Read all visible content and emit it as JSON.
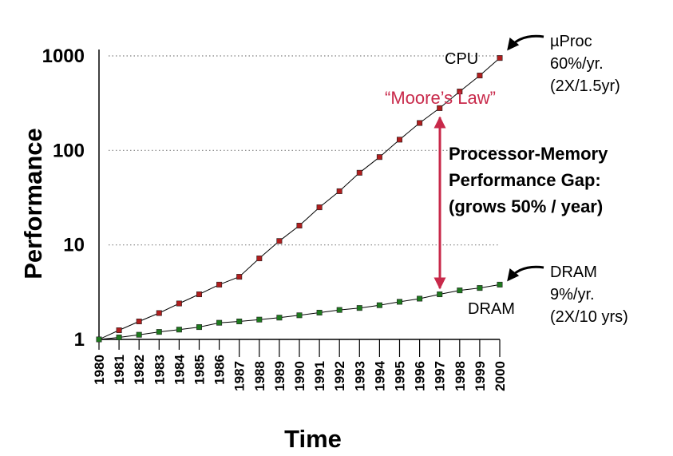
{
  "chart_data": {
    "type": "line",
    "title": "",
    "xlabel": "Time",
    "ylabel": "Performance",
    "yscale": "log",
    "ylim": [
      1,
      1000
    ],
    "yticks": [
      1,
      10,
      100,
      1000
    ],
    "ytick_labels": [
      "1",
      "10",
      "100",
      "1000"
    ],
    "grid": "dotted horizontal at 10, 100, 1000",
    "x": [
      "1980",
      "1981",
      "1982",
      "1983",
      "1984",
      "1985",
      "1986",
      "1987",
      "1988",
      "1989",
      "1990",
      "1991",
      "1992",
      "1993",
      "1994",
      "1995",
      "1996",
      "1997",
      "1998",
      "1999",
      "2000"
    ],
    "series": [
      {
        "name": "CPU",
        "color": "#b01e1e",
        "values": [
          1,
          1.25,
          1.55,
          1.9,
          2.4,
          3.0,
          3.8,
          4.6,
          7.2,
          11,
          16,
          25,
          37,
          58,
          85,
          130,
          195,
          280,
          420,
          620,
          950
        ]
      },
      {
        "name": "DRAM",
        "color": "#1e7a1e",
        "values": [
          1,
          1.05,
          1.12,
          1.2,
          1.27,
          1.35,
          1.5,
          1.55,
          1.62,
          1.7,
          1.8,
          1.92,
          2.05,
          2.15,
          2.3,
          2.5,
          2.7,
          3.0,
          3.3,
          3.5,
          3.8
        ]
      }
    ],
    "annotations": {
      "cpu_label": "CPU",
      "dram_label": "DRAM",
      "moores_law": "“Moore’s Law”",
      "cpu_note": [
        "µProc",
        "60%/yr.",
        "(2X/1.5yr)"
      ],
      "dram_note": [
        "DRAM",
        "9%/yr.",
        "(2X/10 yrs)"
      ],
      "gap_note": [
        "Processor-Memory",
        "Performance Gap:",
        "(grows 50% / year)"
      ]
    },
    "colors": {
      "gap_arrow": "#c8294a",
      "axis": "#000000",
      "grid": "#808080"
    }
  }
}
